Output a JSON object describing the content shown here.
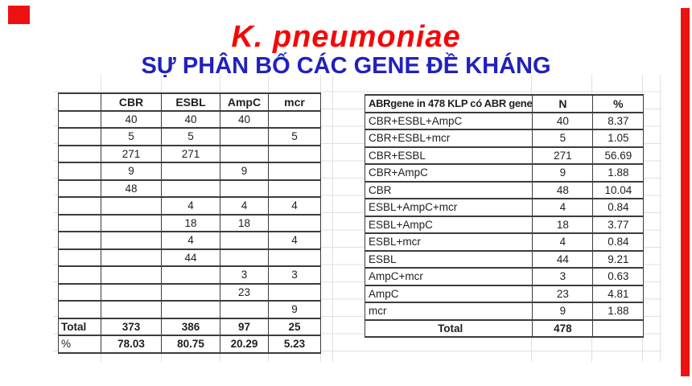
{
  "title": {
    "species": "K. pneumoniae",
    "subtitle": "SỰ PHÂN BỐ CÁC GENE ĐỀ KHÁNG"
  },
  "colors": {
    "title_red": "#f80606",
    "subtitle_blue": "#2121bd",
    "accent_red": "#ee1111",
    "table_border": "#3c3c3c",
    "faint_gridline": "#e0e0e0"
  },
  "left_table": {
    "headers": [
      "",
      "CBR",
      "ESBL",
      "AmpC",
      "mcr"
    ],
    "rows": [
      [
        "",
        "40",
        "40",
        "40",
        ""
      ],
      [
        "",
        "5",
        "5",
        "",
        "5"
      ],
      [
        "",
        "271",
        "271",
        "",
        ""
      ],
      [
        "",
        "9",
        "",
        "9",
        ""
      ],
      [
        "",
        "48",
        "",
        "",
        ""
      ],
      [
        "",
        "",
        "4",
        "4",
        "4"
      ],
      [
        "",
        "",
        "18",
        "18",
        ""
      ],
      [
        "",
        "",
        "4",
        "",
        "4"
      ],
      [
        "",
        "",
        "44",
        "",
        ""
      ],
      [
        "",
        "",
        "",
        "3",
        "3"
      ],
      [
        "",
        "",
        "",
        "23",
        ""
      ],
      [
        "",
        "",
        "",
        "",
        "9"
      ]
    ],
    "total_row": [
      "Total",
      "373",
      "386",
      "97",
      "25"
    ],
    "percent_row": [
      "%",
      "78.03",
      "80.75",
      "20.29",
      "5.23"
    ]
  },
  "right_table": {
    "headers": [
      "ABRgene in 478 KLP có ABR gene",
      "N",
      "%"
    ],
    "rows": [
      [
        "CBR+ESBL+AmpC",
        "40",
        "8.37"
      ],
      [
        "CBR+ESBL+mcr",
        "5",
        "1.05"
      ],
      [
        "CBR+ESBL",
        "271",
        "56.69"
      ],
      [
        "CBR+AmpC",
        "9",
        "1.88"
      ],
      [
        "CBR",
        "48",
        "10.04"
      ],
      [
        "ESBL+AmpC+mcr",
        "4",
        "0.84"
      ],
      [
        "ESBL+AmpC",
        "18",
        "3.77"
      ],
      [
        "ESBL+mcr",
        "4",
        "0.84"
      ],
      [
        "ESBL",
        "44",
        "9.21"
      ],
      [
        "AmpC+mcr",
        "3",
        "0.63"
      ],
      [
        "AmpC",
        "23",
        "4.81"
      ],
      [
        "mcr",
        "9",
        "1.88"
      ]
    ],
    "total_row": [
      "Total",
      "478",
      ""
    ]
  }
}
